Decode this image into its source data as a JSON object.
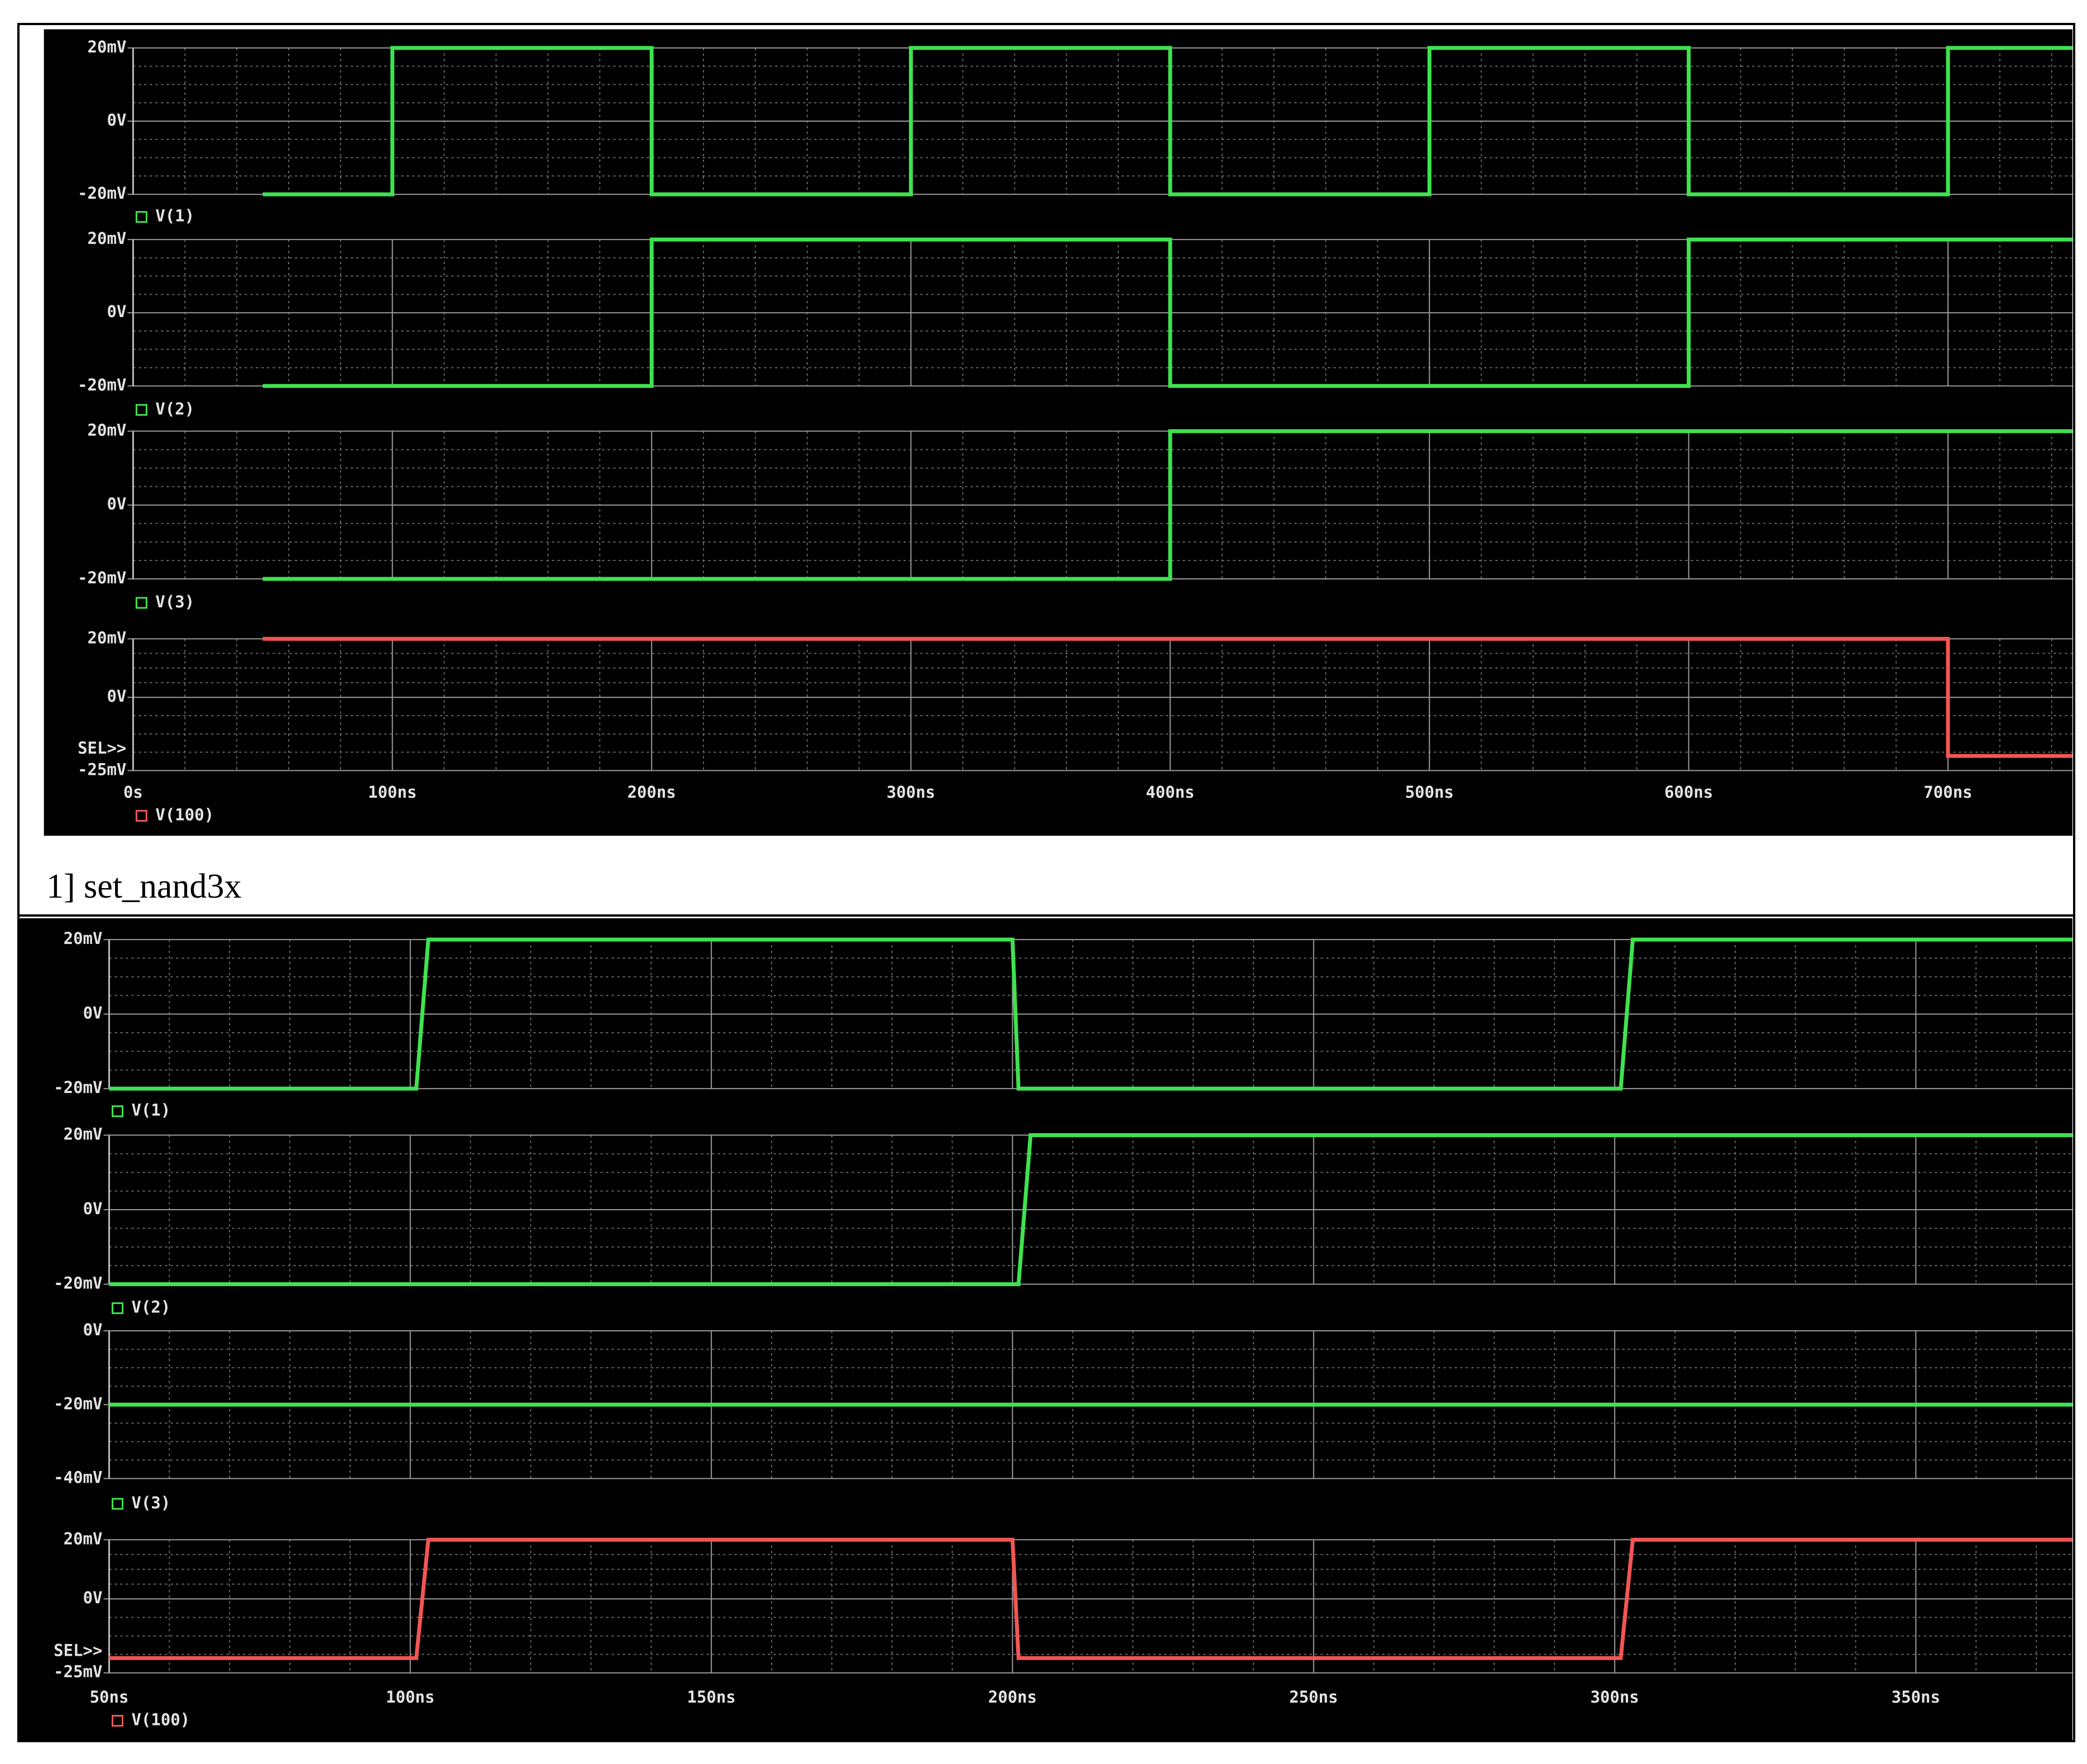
{
  "caption": "1] set_nand3x",
  "chart_data": [
    {
      "type": "line",
      "xlim": [
        0,
        748
      ],
      "xticks": [
        {
          "value": 0,
          "label": "0s"
        },
        {
          "value": 100,
          "label": "100ns"
        },
        {
          "value": 200,
          "label": "200ns"
        },
        {
          "value": 300,
          "label": "300ns"
        },
        {
          "value": 400,
          "label": "400ns"
        },
        {
          "value": 500,
          "label": "500ns"
        },
        {
          "value": 600,
          "label": "600ns"
        },
        {
          "value": 700,
          "label": "700ns"
        }
      ],
      "grid": true,
      "panels": [
        {
          "ylim": [
            -20,
            20
          ],
          "yticks": [
            {
              "value": -20,
              "label": "-20mV"
            },
            {
              "value": 0,
              "label": "0V"
            },
            {
              "value": 20,
              "label": "20mV"
            }
          ],
          "series": [
            {
              "name": "V(1)",
              "color": "#3fe24f",
              "x": [
                50,
                100,
                100,
                200,
                200,
                300,
                300,
                400,
                400,
                500,
                500,
                600,
                600,
                700,
                700,
                748
              ],
              "values": [
                -20,
                -20,
                20,
                20,
                -20,
                -20,
                20,
                20,
                -20,
                -20,
                20,
                20,
                -20,
                -20,
                20,
                20
              ]
            }
          ]
        },
        {
          "ylim": [
            -20,
            20
          ],
          "yticks": [
            {
              "value": -20,
              "label": "-20mV"
            },
            {
              "value": 0,
              "label": "0V"
            },
            {
              "value": 20,
              "label": "20mV"
            }
          ],
          "series": [
            {
              "name": "V(2)",
              "color": "#3fe24f",
              "x": [
                50,
                200,
                200,
                400,
                400,
                600,
                600,
                748
              ],
              "values": [
                -20,
                -20,
                20,
                20,
                -20,
                -20,
                20,
                20
              ]
            }
          ]
        },
        {
          "ylim": [
            -20,
            20
          ],
          "yticks": [
            {
              "value": -20,
              "label": "-20mV"
            },
            {
              "value": 0,
              "label": "0V"
            },
            {
              "value": 20,
              "label": "20mV"
            }
          ],
          "series": [
            {
              "name": "V(3)",
              "color": "#3fe24f",
              "x": [
                50,
                400,
                400,
                748
              ],
              "values": [
                -20,
                -20,
                20,
                20
              ]
            }
          ]
        },
        {
          "ylim": [
            -25,
            20
          ],
          "yticks": [
            {
              "value": -25,
              "label": "-25mV"
            },
            {
              "value": 0,
              "label": "0V"
            },
            {
              "value": 20,
              "label": "20mV"
            }
          ],
          "annotation": "SEL>>",
          "series": [
            {
              "name": "V(100)",
              "color": "#f25555",
              "x": [
                50,
                700,
                700,
                748
              ],
              "values": [
                20,
                20,
                -20,
                -20
              ]
            }
          ]
        }
      ]
    },
    {
      "type": "line",
      "xlim": [
        50,
        376
      ],
      "xticks": [
        {
          "value": 50,
          "label": "50ns"
        },
        {
          "value": 100,
          "label": "100ns"
        },
        {
          "value": 150,
          "label": "150ns"
        },
        {
          "value": 200,
          "label": "200ns"
        },
        {
          "value": 250,
          "label": "250ns"
        },
        {
          "value": 300,
          "label": "300ns"
        },
        {
          "value": 350,
          "label": "350ns"
        }
      ],
      "grid": true,
      "panels": [
        {
          "ylim": [
            -20,
            20
          ],
          "yticks": [
            {
              "value": -20,
              "label": "-20mV"
            },
            {
              "value": 0,
              "label": "0V"
            },
            {
              "value": 20,
              "label": "20mV"
            }
          ],
          "series": [
            {
              "name": "V(1)",
              "color": "#3fe24f",
              "x": [
                50,
                101,
                103,
                200,
                201,
                301,
                303,
                376
              ],
              "values": [
                -20,
                -20,
                20,
                20,
                -20,
                -20,
                20,
                20
              ]
            }
          ]
        },
        {
          "ylim": [
            -20,
            20
          ],
          "yticks": [
            {
              "value": -20,
              "label": "-20mV"
            },
            {
              "value": 0,
              "label": "0V"
            },
            {
              "value": 20,
              "label": "20mV"
            }
          ],
          "series": [
            {
              "name": "V(2)",
              "color": "#3fe24f",
              "x": [
                50,
                201,
                203,
                376
              ],
              "values": [
                -20,
                -20,
                20,
                20
              ]
            }
          ]
        },
        {
          "ylim": [
            -40,
            0
          ],
          "yticks": [
            {
              "value": -40,
              "label": "-40mV"
            },
            {
              "value": -20,
              "label": "-20mV"
            },
            {
              "value": 0,
              "label": "0V"
            }
          ],
          "series": [
            {
              "name": "V(3)",
              "color": "#3fe24f",
              "x": [
                50,
                376
              ],
              "values": [
                -20,
                -20
              ]
            }
          ]
        },
        {
          "ylim": [
            -25,
            20
          ],
          "yticks": [
            {
              "value": -25,
              "label": "-25mV"
            },
            {
              "value": 0,
              "label": "0V"
            },
            {
              "value": 20,
              "label": "20mV"
            }
          ],
          "annotation": "SEL>>",
          "series": [
            {
              "name": "V(100)",
              "color": "#f25555",
              "x": [
                50,
                101,
                103,
                200,
                201,
                301,
                303,
                376
              ],
              "values": [
                -20,
                -20,
                20,
                20,
                -20,
                -20,
                20,
                20
              ]
            }
          ]
        }
      ]
    }
  ]
}
